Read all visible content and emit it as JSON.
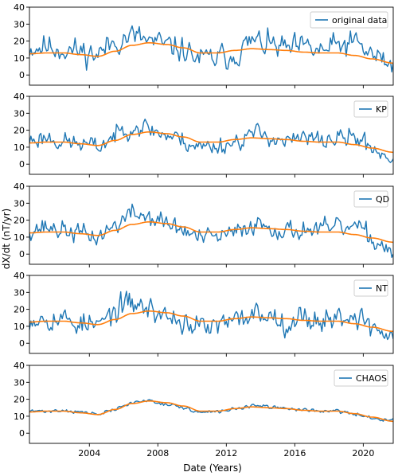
{
  "figure": {
    "xlabel": "Date (Years)",
    "ylabel": "dX/dt (nT/yr)"
  },
  "colors": {
    "data": "#1f77b4",
    "model": "#ff7f0e",
    "axis": "#000000",
    "legend_border": "#cccccc"
  },
  "chart_data": [
    {
      "type": "line",
      "legend": "original data",
      "xlim": [
        2000.5,
        2021.75
      ],
      "ylim": [
        -6,
        40
      ],
      "x_ticks": [
        2004,
        2008,
        2012,
        2016,
        2020
      ],
      "y_ticks": [
        0,
        10,
        20,
        30,
        40
      ],
      "noise": 6.5,
      "seed": 11,
      "series": [
        {
          "name": "original data",
          "x": [
            2000.5,
            2001.5,
            2002.5,
            2003.5,
            2004.5,
            2005.5,
            2006.5,
            2007.5,
            2008.5,
            2009.5,
            2010.5,
            2011.5,
            2012.5,
            2013.5,
            2014.5,
            2015.5,
            2016.5,
            2017.5,
            2018.5,
            2019.5,
            2020.5,
            2021.5
          ],
          "y": [
            16,
            17,
            15,
            14,
            12,
            20,
            23,
            20,
            17,
            15,
            9,
            10,
            12,
            20,
            18,
            15,
            16,
            14,
            17,
            19,
            12,
            7
          ]
        },
        {
          "name": "model",
          "x": [
            2000.5,
            2001.5,
            2002.5,
            2003.5,
            2004.5,
            2005.5,
            2006.5,
            2007.5,
            2008.5,
            2009.5,
            2010.5,
            2011.5,
            2012.5,
            2013.5,
            2014.5,
            2015.5,
            2016.5,
            2017.5,
            2018.5,
            2019.5,
            2020.5,
            2021.75
          ],
          "y": [
            12.5,
            13,
            13,
            12,
            11,
            14,
            17.5,
            19,
            18,
            16,
            13,
            13,
            14.5,
            15.5,
            15,
            14.5,
            13.5,
            13,
            13,
            11.5,
            9.5,
            7
          ]
        }
      ]
    },
    {
      "type": "line",
      "legend": "KP",
      "xlim": [
        2000.5,
        2021.75
      ],
      "ylim": [
        -6,
        40
      ],
      "x_ticks": [
        2004,
        2008,
        2012,
        2016,
        2020
      ],
      "y_ticks": [
        0,
        10,
        20,
        30,
        40
      ],
      "noise": 4.8,
      "seed": 23,
      "series": [
        {
          "name": "KP",
          "x": [
            2000.5,
            2001.5,
            2002.5,
            2003.5,
            2004.5,
            2005.5,
            2006.5,
            2007.5,
            2008.5,
            2009.5,
            2010.5,
            2011.5,
            2012.5,
            2013.5,
            2014.5,
            2015.5,
            2016.5,
            2017.5,
            2018.5,
            2019.5,
            2020.5,
            2021.5
          ],
          "y": [
            14,
            16,
            13,
            12,
            10,
            17,
            23,
            21,
            17,
            14,
            10,
            11,
            13,
            18,
            17,
            13,
            15,
            14,
            15,
            16,
            10,
            4
          ]
        },
        {
          "name": "model",
          "x": [
            2000.5,
            2001.5,
            2002.5,
            2003.5,
            2004.5,
            2005.5,
            2006.5,
            2007.5,
            2008.5,
            2009.5,
            2010.5,
            2011.5,
            2012.5,
            2013.5,
            2014.5,
            2015.5,
            2016.5,
            2017.5,
            2018.5,
            2019.5,
            2020.5,
            2021.75
          ],
          "y": [
            12.5,
            13,
            13,
            12,
            11,
            14,
            17.5,
            19,
            18,
            16,
            13,
            13,
            14.5,
            15.5,
            15,
            14.5,
            13.5,
            13,
            13,
            11.5,
            9.5,
            7
          ]
        }
      ]
    },
    {
      "type": "line",
      "legend": "QD",
      "xlim": [
        2000.5,
        2021.75
      ],
      "ylim": [
        -6,
        40
      ],
      "x_ticks": [
        2004,
        2008,
        2012,
        2016,
        2020
      ],
      "y_ticks": [
        0,
        10,
        20,
        30,
        40
      ],
      "noise": 5.0,
      "seed": 37,
      "series": [
        {
          "name": "QD",
          "x": [
            2000.5,
            2001.5,
            2002.5,
            2003.5,
            2004.5,
            2005.5,
            2006.5,
            2007.5,
            2008.5,
            2009.5,
            2010.5,
            2011.5,
            2012.5,
            2013.5,
            2014.5,
            2015.5,
            2016.5,
            2017.5,
            2018.5,
            2019.5,
            2020.5,
            2021.5
          ],
          "y": [
            15,
            16,
            14,
            12,
            10,
            17,
            24,
            22,
            18,
            14,
            9,
            10,
            12,
            18,
            17,
            13,
            15,
            14,
            15,
            16,
            9,
            3
          ]
        },
        {
          "name": "model",
          "x": [
            2000.5,
            2001.5,
            2002.5,
            2003.5,
            2004.5,
            2005.5,
            2006.5,
            2007.5,
            2008.5,
            2009.5,
            2010.5,
            2011.5,
            2012.5,
            2013.5,
            2014.5,
            2015.5,
            2016.5,
            2017.5,
            2018.5,
            2019.5,
            2020.5,
            2021.75
          ],
          "y": [
            12.5,
            13,
            13,
            12,
            11,
            14,
            17.5,
            19,
            18,
            16,
            13,
            13,
            14.5,
            15.5,
            15,
            14.5,
            13.5,
            13,
            13,
            11.5,
            9.5,
            7
          ]
        }
      ]
    },
    {
      "type": "line",
      "legend": "NT",
      "xlim": [
        2000.5,
        2021.75
      ],
      "ylim": [
        -6,
        40
      ],
      "x_ticks": [
        2004,
        2008,
        2012,
        2016,
        2020
      ],
      "y_ticks": [
        0,
        10,
        20,
        30,
        40
      ],
      "noise": 6.2,
      "seed": 53,
      "series": [
        {
          "name": "NT",
          "x": [
            2000.5,
            2001.5,
            2002.5,
            2003.5,
            2004.5,
            2005.5,
            2006.5,
            2007.5,
            2008.5,
            2009.5,
            2010.5,
            2011.5,
            2012.5,
            2013.5,
            2014.5,
            2015.5,
            2016.5,
            2017.5,
            2018.5,
            2019.5,
            2020.5,
            2021.5
          ],
          "y": [
            15,
            16,
            14,
            12,
            10,
            19,
            24,
            20,
            16,
            13,
            9,
            10,
            12,
            18,
            17,
            13,
            15,
            14,
            15,
            17,
            10,
            4
          ]
        },
        {
          "name": "model",
          "x": [
            2000.5,
            2001.5,
            2002.5,
            2003.5,
            2004.5,
            2005.5,
            2006.5,
            2007.5,
            2008.5,
            2009.5,
            2010.5,
            2011.5,
            2012.5,
            2013.5,
            2014.5,
            2015.5,
            2016.5,
            2017.5,
            2018.5,
            2019.5,
            2020.5,
            2021.75
          ],
          "y": [
            12.5,
            13,
            13,
            12,
            11,
            14,
            17.5,
            19,
            18,
            16,
            13,
            13,
            14.5,
            15.5,
            15,
            14.5,
            13.5,
            13,
            13,
            11.5,
            9.5,
            7
          ]
        }
      ]
    },
    {
      "type": "line",
      "legend": "CHAOS",
      "xlim": [
        2000.5,
        2021.75
      ],
      "ylim": [
        -6,
        40
      ],
      "x_ticks": [
        2004,
        2008,
        2012,
        2016,
        2020
      ],
      "y_ticks": [
        0,
        10,
        20,
        30,
        40
      ],
      "noise": 0.9,
      "seed": 71,
      "series": [
        {
          "name": "CHAOS",
          "x": [
            2000.5,
            2001.5,
            2002.5,
            2003.5,
            2004.5,
            2005.5,
            2006.5,
            2007.5,
            2008.5,
            2009.5,
            2010.5,
            2011.5,
            2012.5,
            2013.5,
            2014.5,
            2015.5,
            2016.5,
            2017.5,
            2018.5,
            2019.5,
            2020.5,
            2021.5
          ],
          "y": [
            13,
            13,
            13.5,
            12.5,
            11,
            14,
            18,
            19.5,
            17,
            15,
            12,
            12.5,
            14.5,
            16,
            15.5,
            14.5,
            14,
            13,
            13,
            11,
            9,
            8
          ]
        },
        {
          "name": "model",
          "x": [
            2000.5,
            2001.5,
            2002.5,
            2003.5,
            2004.5,
            2005.5,
            2006.5,
            2007.5,
            2008.5,
            2009.5,
            2010.5,
            2011.5,
            2012.5,
            2013.5,
            2014.5,
            2015.5,
            2016.5,
            2017.5,
            2018.5,
            2019.5,
            2020.5,
            2021.75
          ],
          "y": [
            12.5,
            13,
            13,
            12,
            11,
            14,
            17.5,
            19,
            18,
            16,
            13,
            13,
            14.5,
            15.5,
            15,
            14.5,
            13.5,
            13,
            13,
            11.5,
            9.5,
            7
          ]
        }
      ]
    }
  ]
}
